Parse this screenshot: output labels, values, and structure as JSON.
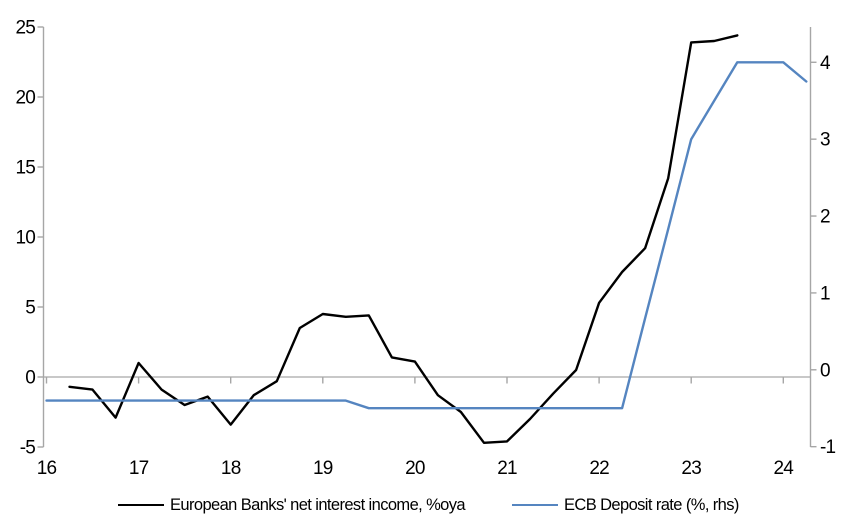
{
  "chart_data": {
    "type": "line",
    "title": "",
    "grid": false,
    "legend_position": "bottom",
    "x_axis": {
      "ticks": [
        16,
        17,
        18,
        19,
        20,
        21,
        22,
        23,
        24
      ],
      "tick_labels": [
        "16",
        "17",
        "18",
        "19",
        "20",
        "21",
        "22",
        "23",
        "24"
      ],
      "range": [
        16,
        24.45
      ]
    },
    "left_axis": {
      "ticks": [
        -5,
        0,
        5,
        10,
        15,
        20,
        25
      ],
      "tick_labels": [
        "-5",
        "0",
        "5",
        "10",
        "15",
        "20",
        "25"
      ],
      "range": [
        -5,
        25
      ]
    },
    "right_axis": {
      "ticks": [
        -1,
        0,
        1,
        2,
        3,
        4
      ],
      "tick_labels": [
        "-1",
        "0",
        "1",
        "2",
        "3",
        "4"
      ],
      "range": [
        -1.03,
        4.46
      ]
    },
    "series": [
      {
        "name": "European Banks' net interest income, %oya",
        "axis": "left",
        "color": "#000000",
        "x": [
          16.25,
          16.5,
          16.75,
          17.0,
          17.25,
          17.5,
          17.75,
          18.0,
          18.25,
          18.5,
          18.75,
          19.0,
          19.25,
          19.5,
          19.75,
          20.0,
          20.25,
          20.5,
          20.75,
          21.0,
          21.25,
          21.5,
          21.75,
          22.0,
          22.25,
          22.5,
          22.75,
          23.0,
          23.25,
          23.5
        ],
        "values": [
          -0.7,
          -0.9,
          -2.9,
          1.0,
          -0.9,
          -2.0,
          -1.4,
          -3.4,
          -1.3,
          -0.3,
          3.5,
          4.5,
          4.3,
          4.4,
          1.4,
          1.1,
          -1.3,
          -2.5,
          -4.7,
          -4.6,
          -3.0,
          -1.2,
          0.5,
          5.3,
          7.5,
          9.2,
          14.2,
          23.9,
          24.0,
          24.4
        ]
      },
      {
        "name": "ECB Deposit rate (%, rhs)",
        "axis": "right",
        "color": "#5585c0",
        "x": [
          16.0,
          16.25,
          16.5,
          16.75,
          17.0,
          17.25,
          17.5,
          17.75,
          18.0,
          18.25,
          18.5,
          18.75,
          19.0,
          19.25,
          19.5,
          19.75,
          20.0,
          20.25,
          20.5,
          20.75,
          21.0,
          21.25,
          21.5,
          21.75,
          22.0,
          22.25,
          22.5,
          22.75,
          23.0,
          23.25,
          23.5,
          23.75,
          24.0,
          24.25
        ],
        "values": [
          -0.4,
          -0.4,
          -0.4,
          -0.4,
          -0.4,
          -0.4,
          -0.4,
          -0.4,
          -0.4,
          -0.4,
          -0.4,
          -0.4,
          -0.4,
          -0.4,
          -0.5,
          -0.5,
          -0.5,
          -0.5,
          -0.5,
          -0.5,
          -0.5,
          -0.5,
          -0.5,
          -0.5,
          -0.5,
          -0.5,
          0.67,
          1.83,
          3.0,
          3.5,
          4.0,
          4.0,
          4.0,
          3.75
        ]
      }
    ],
    "colors": {
      "axis_line": "#a6a6a6",
      "zero_line": "#a6a6a6",
      "background": "#ffffff",
      "tick_text": "#000000"
    }
  }
}
